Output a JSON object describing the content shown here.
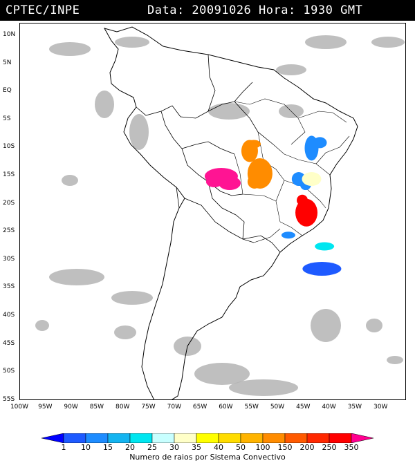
{
  "header": {
    "agency": "CPTEC/INPE",
    "datestamp": "Data: 20091026 Hora: 1930 GMT"
  },
  "axes": {
    "lat_labels": [
      "10N",
      "5N",
      "EQ",
      "5S",
      "10S",
      "15S",
      "20S",
      "25S",
      "30S",
      "35S",
      "40S",
      "45S",
      "50S",
      "55S"
    ],
    "lon_labels": [
      "100W",
      "95W",
      "90W",
      "85W",
      "80W",
      "75W",
      "70W",
      "65W",
      "60W",
      "55W",
      "50W",
      "45W",
      "40W",
      "35W",
      "30W"
    ]
  },
  "colorbar": {
    "title": "Numero de raios por Sistema Convectivo",
    "ticks": [
      "1",
      "10",
      "15",
      "20",
      "25",
      "30",
      "35",
      "40",
      "50",
      "100",
      "150",
      "200",
      "250",
      "350"
    ],
    "colors": [
      "#0000ff",
      "#1e5aff",
      "#1e8cff",
      "#14b4f0",
      "#00e6f0",
      "#c8ffff",
      "#ffffc8",
      "#ffff00",
      "#ffdc00",
      "#ffb400",
      "#ff8c00",
      "#ff5a00",
      "#ff2800",
      "#ff0000",
      "#ff0090"
    ]
  },
  "map": {
    "coastline_color": "#000000",
    "cloud_color": "#b4b4b4",
    "systems": [
      {
        "id": "mato-grosso-west",
        "color": "#ff1493",
        "lon": -61,
        "lat": -15,
        "class": "350+"
      },
      {
        "id": "para-south",
        "color": "#ff8c00",
        "lon": -55.5,
        "lat": -10.5,
        "class": "150-200"
      },
      {
        "id": "mato-grosso-east",
        "color": "#ff8c00",
        "lon": -53.5,
        "lat": -14.5,
        "class": "150-200"
      },
      {
        "id": "bahia-north",
        "color": "#1e8cff",
        "lon": -43.5,
        "lat": -10,
        "class": "15-20"
      },
      {
        "id": "goias-north",
        "color": "#1e8cff",
        "lon": -46,
        "lat": -15.5,
        "class": "15-20"
      },
      {
        "id": "minas-north",
        "color": "#ffffc8",
        "lon": -43.5,
        "lat": -15.5,
        "class": "30-35"
      },
      {
        "id": "minas-south",
        "color": "#ff0000",
        "lon": -44.5,
        "lat": -21.5,
        "class": "250-350"
      },
      {
        "id": "parana-coast",
        "color": "#1e8cff",
        "lon": -48,
        "lat": -25.5,
        "class": "15-20"
      },
      {
        "id": "atlantic-east",
        "color": "#00e6f0",
        "lon": -41,
        "lat": -27.5,
        "class": "20-25"
      },
      {
        "id": "atlantic-south",
        "color": "#1e5aff",
        "lon": -41.5,
        "lat": -31.5,
        "class": "10-15"
      }
    ]
  }
}
